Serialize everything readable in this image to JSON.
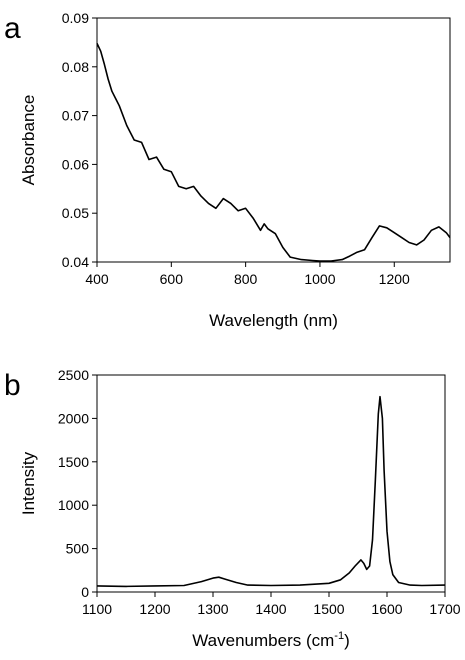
{
  "chart_data": [
    {
      "type": "line",
      "panel_label": "a",
      "title": "",
      "xlabel": "Wavelength (nm)",
      "ylabel": "Absorbance",
      "xlim": [
        400,
        1350
      ],
      "ylim": [
        0.04,
        0.09
      ],
      "xticks": [
        400,
        600,
        800,
        1000,
        1200
      ],
      "xtick_labels": [
        "400",
        "600",
        "800",
        "1000",
        "1200"
      ],
      "yticks": [
        0.04,
        0.05,
        0.06,
        0.07,
        0.08,
        0.09
      ],
      "ytick_labels": [
        "0.04",
        "0.05",
        "0.06",
        "0.07",
        "0.08",
        "0.09"
      ],
      "grid": false,
      "line_color": "#000000",
      "series": [
        {
          "x": [
            400,
            410,
            420,
            430,
            440,
            450,
            460,
            480,
            500,
            520,
            540,
            560,
            580,
            600,
            620,
            640,
            660,
            680,
            700,
            720,
            740,
            760,
            780,
            800,
            820,
            840,
            850,
            860,
            880,
            900,
            920,
            950,
            980,
            1000,
            1030,
            1060,
            1080,
            1100,
            1120,
            1140,
            1160,
            1180,
            1200,
            1220,
            1240,
            1260,
            1280,
            1300,
            1320,
            1340,
            1350
          ],
          "y": [
            0.0848,
            0.0832,
            0.0805,
            0.0775,
            0.075,
            0.0735,
            0.072,
            0.068,
            0.065,
            0.0645,
            0.061,
            0.0615,
            0.059,
            0.0585,
            0.0555,
            0.055,
            0.0555,
            0.0535,
            0.052,
            0.051,
            0.053,
            0.052,
            0.0505,
            0.051,
            0.049,
            0.0465,
            0.0478,
            0.0468,
            0.0458,
            0.043,
            0.041,
            0.0405,
            0.0403,
            0.0402,
            0.0402,
            0.0405,
            0.0412,
            0.042,
            0.0425,
            0.045,
            0.0474,
            0.047,
            0.046,
            0.045,
            0.044,
            0.0435,
            0.0445,
            0.0465,
            0.0472,
            0.046,
            0.045
          ]
        }
      ]
    },
    {
      "type": "line",
      "panel_label": "b",
      "title": "",
      "xlabel": "Wavenumbers (cm",
      "xlabel_sup": "-1",
      "xlabel_close": ")",
      "ylabel": "Intensity",
      "xlim": [
        1100,
        1700
      ],
      "ylim": [
        0,
        2500
      ],
      "xticks": [
        1100,
        1200,
        1300,
        1400,
        1500,
        1600,
        1700
      ],
      "xtick_labels": [
        "1100",
        "1200",
        "1300",
        "1400",
        "1500",
        "1600",
        "1700"
      ],
      "yticks": [
        0,
        500,
        1000,
        1500,
        2000,
        2500
      ],
      "ytick_labels": [
        "0",
        "500",
        "1000",
        "1500",
        "2000",
        "2500"
      ],
      "grid": false,
      "line_color": "#000000",
      "series": [
        {
          "x": [
            1100,
            1150,
            1200,
            1250,
            1280,
            1300,
            1310,
            1320,
            1340,
            1360,
            1400,
            1450,
            1500,
            1520,
            1535,
            1545,
            1555,
            1560,
            1565,
            1570,
            1575,
            1580,
            1585,
            1588,
            1592,
            1595,
            1600,
            1605,
            1610,
            1620,
            1640,
            1660,
            1700
          ],
          "y": [
            70,
            65,
            70,
            75,
            120,
            160,
            170,
            150,
            110,
            80,
            75,
            80,
            100,
            140,
            220,
            300,
            370,
            330,
            260,
            300,
            600,
            1300,
            2050,
            2250,
            2000,
            1400,
            700,
            350,
            200,
            110,
            80,
            75,
            80
          ]
        }
      ]
    }
  ]
}
